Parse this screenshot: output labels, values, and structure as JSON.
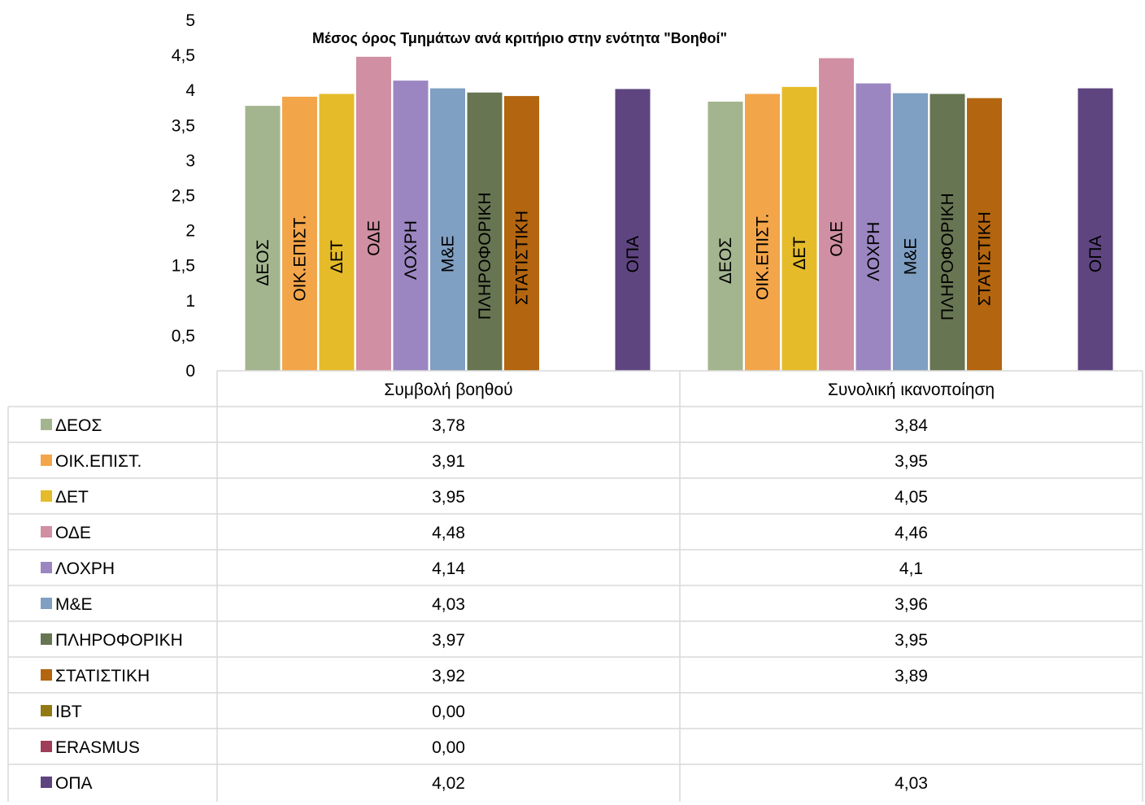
{
  "chart_data": {
    "type": "bar",
    "title": "Μέσος όρος Τμημάτων ανά κριτήριο στην ενότητα \"Βοηθοί\"",
    "categories": [
      "Συμβολή βοηθού",
      "Συνολική ικανοποίηση"
    ],
    "ylim": [
      0,
      5
    ],
    "yticks": [
      "0",
      "0,5",
      "1",
      "1,5",
      "2",
      "2,5",
      "3",
      "3,5",
      "4",
      "4,5",
      "5"
    ],
    "grid": false,
    "legend": "data-table",
    "series": [
      {
        "name": "ΔΕΟΣ",
        "color": "#a3b58f",
        "values": [
          3.78,
          3.84
        ],
        "display": [
          "3,78",
          "3,84"
        ]
      },
      {
        "name": "ΟΙΚ.ΕΠΙΣΤ.",
        "color": "#f3a54a",
        "values": [
          3.91,
          3.95
        ],
        "display": [
          "3,91",
          "3,95"
        ]
      },
      {
        "name": "ΔΕΤ",
        "color": "#e5bb2a",
        "values": [
          3.95,
          4.05
        ],
        "display": [
          "3,95",
          "4,05"
        ]
      },
      {
        "name": "ΟΔΕ",
        "color": "#d08fa3",
        "values": [
          4.48,
          4.46
        ],
        "display": [
          "4,48",
          "4,46"
        ]
      },
      {
        "name": "ΛΟΧΡΗ",
        "color": "#9b86c1",
        "values": [
          4.14,
          4.1
        ],
        "display": [
          "4,14",
          "4,1"
        ]
      },
      {
        "name": "Μ&Ε",
        "color": "#7f9fc3",
        "values": [
          4.03,
          3.96
        ],
        "display": [
          "4,03",
          "3,96"
        ]
      },
      {
        "name": "ΠΛΗΡΟΦΟΡΙΚΗ",
        "color": "#677552",
        "values": [
          3.97,
          3.95
        ],
        "display": [
          "3,97",
          "3,95"
        ]
      },
      {
        "name": "ΣΤΑΤΙΣΤΙΚΗ",
        "color": "#b3650f",
        "values": [
          3.92,
          3.89
        ],
        "display": [
          "3,92",
          "3,89"
        ]
      },
      {
        "name": "ΙΒΤ",
        "color": "#927a12",
        "values": [
          0,
          null
        ],
        "display": [
          "0,00",
          ""
        ]
      },
      {
        "name": "ERASMUS",
        "color": "#9e3e58",
        "values": [
          0,
          null
        ],
        "display": [
          "0,00",
          ""
        ]
      },
      {
        "name": "ΟΠΑ",
        "color": "#5e4580",
        "values": [
          4.02,
          4.03
        ],
        "display": [
          "4,02",
          "4,03"
        ]
      }
    ]
  }
}
